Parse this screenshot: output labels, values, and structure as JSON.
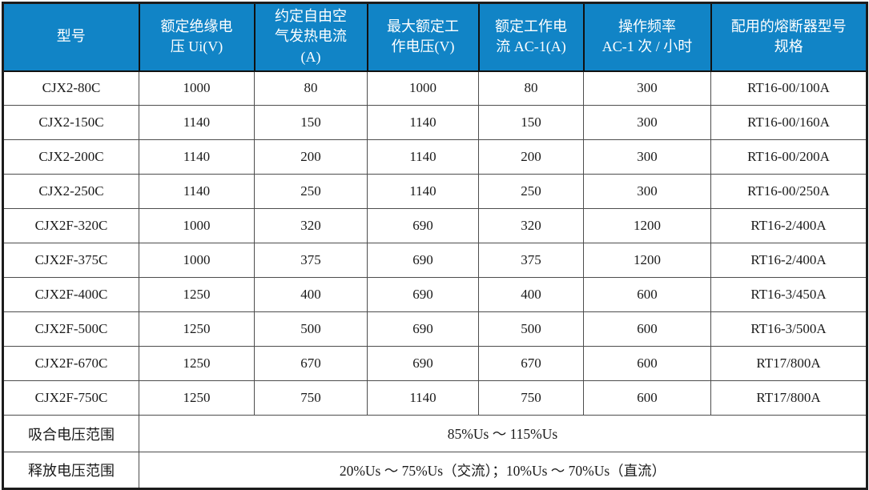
{
  "table": {
    "columns": [
      "型号",
      "额定绝缘电\n压 Ui(V)",
      "约定自由空\n气发热电流\n(A)",
      "最大额定工\n作电压(V)",
      "额定工作电\n流 AC-1(A)",
      "操作频率\nAC-1 次 / 小时",
      "配用的熔断器型号\n规格"
    ],
    "rows": [
      [
        "CJX2-80C",
        "1000",
        "80",
        "1000",
        "80",
        "300",
        "RT16-00/100A"
      ],
      [
        "CJX2-150C",
        "1140",
        "150",
        "1140",
        "150",
        "300",
        "RT16-00/160A"
      ],
      [
        "CJX2-200C",
        "1140",
        "200",
        "1140",
        "200",
        "300",
        "RT16-00/200A"
      ],
      [
        "CJX2-250C",
        "1140",
        "250",
        "1140",
        "250",
        "300",
        "RT16-00/250A"
      ],
      [
        "CJX2F-320C",
        "1000",
        "320",
        "690",
        "320",
        "1200",
        "RT16-2/400A"
      ],
      [
        "CJX2F-375C",
        "1000",
        "375",
        "690",
        "375",
        "1200",
        "RT16-2/400A"
      ],
      [
        "CJX2F-400C",
        "1250",
        "400",
        "690",
        "400",
        "600",
        "RT16-3/450A"
      ],
      [
        "CJX2F-500C",
        "1250",
        "500",
        "690",
        "500",
        "600",
        "RT16-3/500A"
      ],
      [
        "CJX2F-670C",
        "1250",
        "670",
        "690",
        "670",
        "600",
        "RT17/800A"
      ],
      [
        "CJX2F-750C",
        "1250",
        "750",
        "1140",
        "750",
        "600",
        "RT17/800A"
      ]
    ],
    "footer_rows": [
      {
        "label": "吸合电压范围",
        "value": "85%Us ～ 115%Us"
      },
      {
        "label": "释放电压范围",
        "value": "20%Us ～ 75%Us（交流）；10%Us ～ 70%Us（直流）"
      }
    ],
    "colors": {
      "header_bg": "#1184c6",
      "header_text": "#ffffff",
      "border_outer": "#1c1c1c",
      "border_inner": "#4d4d4d",
      "body_text": "#1a1a1a"
    }
  },
  "chart_data": {
    "type": "table",
    "title": "",
    "columns": [
      "型号",
      "额定绝缘电压 Ui(V)",
      "约定自由空气发热电流(A)",
      "最大额定工作电压(V)",
      "额定工作电流 AC-1(A)",
      "操作频率 AC-1 次 / 小时",
      "配用的熔断器型号规格"
    ],
    "rows": [
      [
        "CJX2-80C",
        1000,
        80,
        1000,
        80,
        300,
        "RT16-00/100A"
      ],
      [
        "CJX2-150C",
        1140,
        150,
        1140,
        150,
        300,
        "RT16-00/160A"
      ],
      [
        "CJX2-200C",
        1140,
        200,
        1140,
        200,
        300,
        "RT16-00/200A"
      ],
      [
        "CJX2-250C",
        1140,
        250,
        1140,
        250,
        300,
        "RT16-00/250A"
      ],
      [
        "CJX2F-320C",
        1000,
        320,
        690,
        320,
        1200,
        "RT16-2/400A"
      ],
      [
        "CJX2F-375C",
        1000,
        375,
        690,
        375,
        1200,
        "RT16-2/400A"
      ],
      [
        "CJX2F-400C",
        1250,
        400,
        690,
        400,
        600,
        "RT16-3/450A"
      ],
      [
        "CJX2F-500C",
        1250,
        500,
        690,
        500,
        600,
        "RT16-3/500A"
      ],
      [
        "CJX2F-670C",
        1250,
        670,
        690,
        670,
        600,
        "RT17/800A"
      ],
      [
        "CJX2F-750C",
        1250,
        750,
        1140,
        750,
        600,
        "RT17/800A"
      ]
    ],
    "footer": [
      [
        "吸合电压范围",
        "85%Us ～ 115%Us"
      ],
      [
        "释放电压范围",
        "20%Us ～ 75%Us（交流）；10%Us ～ 70%Us（直流）"
      ]
    ]
  }
}
